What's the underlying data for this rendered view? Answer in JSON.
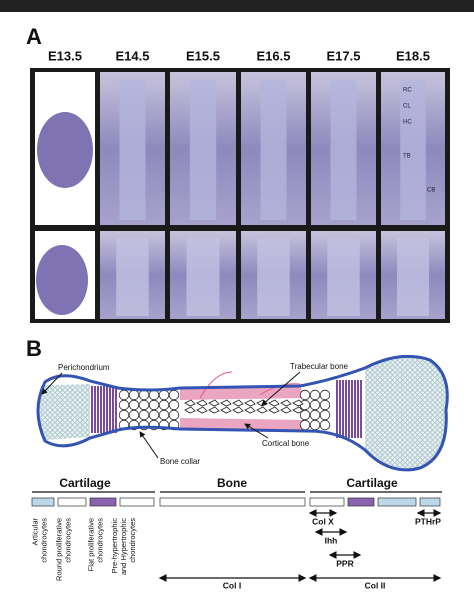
{
  "panel_a": {
    "label": "A",
    "stages": [
      "E13.5",
      "E14.5",
      "E15.5",
      "E16.5",
      "E17.5",
      "E18.5"
    ],
    "annotations": [
      "RC",
      "CL",
      "HC",
      "TB",
      "CB"
    ]
  },
  "panel_b": {
    "label": "B",
    "callouts": [
      "Perichondrium",
      "Trabecular bone",
      "Bone collar",
      "Cortical bone"
    ],
    "regions": [
      "Cartilage",
      "Bone",
      "Cartilage"
    ],
    "zones": [
      [
        "Articular",
        "chondrocytes"
      ],
      [
        "Round proliferative",
        "chondrocytes"
      ],
      [
        "Flat proliferative",
        "chondrocytes"
      ],
      [
        "Pre-hypertrophic",
        "and Hypertrophic",
        "chondrocytes"
      ]
    ],
    "markers": [
      "Col X",
      "Ihh",
      "PPR",
      "PTHrP",
      "Col I",
      "Col II"
    ]
  }
}
